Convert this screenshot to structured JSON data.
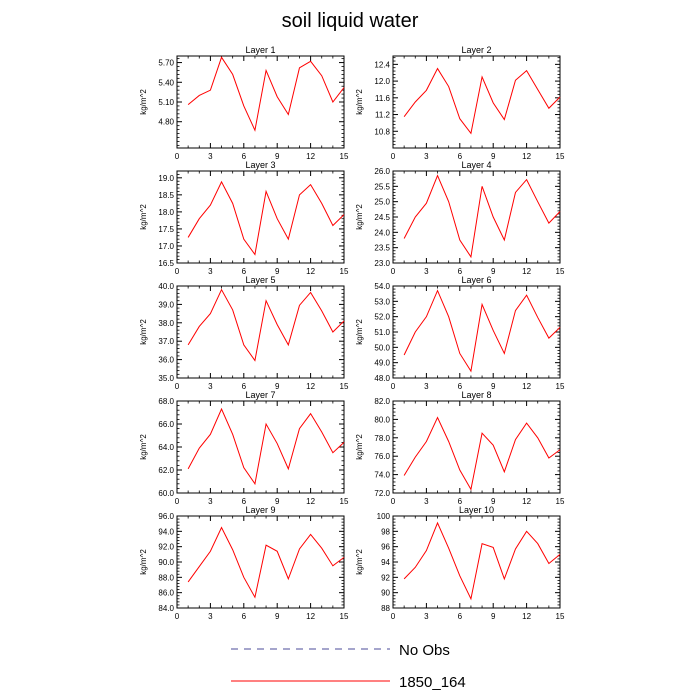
{
  "title": "soil liquid water",
  "legend": {
    "entries": [
      {
        "label": "No Obs",
        "color": "#4b4b9a",
        "style": "dashed"
      },
      {
        "label": "1850_164",
        "color": "#ff0000",
        "style": "solid"
      }
    ]
  },
  "colors": {
    "series": "#ff0000",
    "axes": "#000000"
  },
  "chart_data": [
    {
      "type": "line",
      "title": "Layer 1",
      "ylabel": "kg/m^2",
      "xlim": [
        0,
        15
      ],
      "ylim": [
        4.4,
        5.8
      ],
      "xticks": [
        0,
        3,
        6,
        9,
        12,
        15
      ],
      "xtick_labels": [
        "0",
        "3",
        "6",
        "9",
        "12",
        "15"
      ],
      "yticks": [
        4.8,
        5.1,
        5.4,
        5.7
      ],
      "ytick_labels": [
        "4.80",
        "5.10",
        "5.40",
        "5.70"
      ],
      "x": [
        1,
        2,
        3,
        4,
        5,
        6,
        7,
        8,
        9,
        10,
        11,
        12,
        13,
        14,
        15
      ],
      "series": [
        {
          "name": "1850_164",
          "values": [
            5.06,
            5.2,
            5.28,
            5.78,
            5.52,
            5.04,
            4.67,
            5.58,
            5.18,
            4.91,
            5.62,
            5.72,
            5.5,
            5.1,
            5.32
          ]
        }
      ]
    },
    {
      "type": "line",
      "title": "Layer 2",
      "ylabel": "kg/m^2",
      "xlim": [
        0,
        15
      ],
      "ylim": [
        10.4,
        12.6
      ],
      "xticks": [
        0,
        3,
        6,
        9,
        12,
        15
      ],
      "xtick_labels": [
        "0",
        "3",
        "6",
        "9",
        "12",
        "15"
      ],
      "yticks": [
        10.8,
        11.2,
        11.6,
        12.0,
        12.4
      ],
      "ytick_labels": [
        "10.8",
        "11.2",
        "11.6",
        "12.0",
        "12.4"
      ],
      "x": [
        1,
        2,
        3,
        4,
        5,
        6,
        7,
        8,
        9,
        10,
        11,
        12,
        13,
        14,
        15
      ],
      "series": [
        {
          "name": "1850_164",
          "values": [
            11.15,
            11.5,
            11.78,
            12.3,
            11.87,
            11.1,
            10.75,
            12.1,
            11.48,
            11.08,
            12.02,
            12.25,
            11.8,
            11.35,
            11.62
          ]
        }
      ]
    },
    {
      "type": "line",
      "title": "Layer 3",
      "ylabel": "kg/m^2",
      "xlim": [
        0,
        15
      ],
      "ylim": [
        16.5,
        19.2
      ],
      "xticks": [
        0,
        3,
        6,
        9,
        12,
        15
      ],
      "xtick_labels": [
        "0",
        "3",
        "6",
        "9",
        "12",
        "15"
      ],
      "yticks": [
        16.5,
        17.0,
        17.5,
        18.0,
        18.5,
        19.0
      ],
      "ytick_labels": [
        "16.5",
        "17.0",
        "17.5",
        "18.0",
        "18.5",
        "19.0"
      ],
      "x": [
        1,
        2,
        3,
        4,
        5,
        6,
        7,
        8,
        9,
        10,
        11,
        12,
        13,
        14,
        15
      ],
      "series": [
        {
          "name": "1850_164",
          "values": [
            17.25,
            17.8,
            18.2,
            18.88,
            18.25,
            17.2,
            16.75,
            18.6,
            17.8,
            17.2,
            18.5,
            18.8,
            18.25,
            17.6,
            17.92
          ]
        }
      ]
    },
    {
      "type": "line",
      "title": "Layer 4",
      "ylabel": "kg/m^2",
      "xlim": [
        0,
        15
      ],
      "ylim": [
        23.0,
        26.0
      ],
      "xticks": [
        0,
        3,
        6,
        9,
        12,
        15
      ],
      "xtick_labels": [
        "0",
        "3",
        "6",
        "9",
        "12",
        "15"
      ],
      "yticks": [
        23.0,
        23.5,
        24.0,
        24.5,
        25.0,
        25.5,
        26.0
      ],
      "ytick_labels": [
        "23.0",
        "23.5",
        "24.0",
        "24.5",
        "25.0",
        "25.5",
        "26.0"
      ],
      "x": [
        1,
        2,
        3,
        4,
        5,
        6,
        7,
        8,
        9,
        10,
        11,
        12,
        13,
        14,
        15
      ],
      "series": [
        {
          "name": "1850_164",
          "values": [
            23.8,
            24.5,
            24.95,
            25.85,
            25.0,
            23.75,
            23.2,
            25.5,
            24.5,
            23.75,
            25.3,
            25.72,
            25.0,
            24.3,
            24.68
          ]
        }
      ]
    },
    {
      "type": "line",
      "title": "Layer 5",
      "ylabel": "kg/m^2",
      "xlim": [
        0,
        15
      ],
      "ylim": [
        35.0,
        40.0
      ],
      "xticks": [
        0,
        3,
        6,
        9,
        12,
        15
      ],
      "xtick_labels": [
        "0",
        "3",
        "6",
        "9",
        "12",
        "15"
      ],
      "yticks": [
        35.0,
        36.0,
        37.0,
        38.0,
        39.0,
        40.0
      ],
      "ytick_labels": [
        "35.0",
        "36.0",
        "37.0",
        "38.0",
        "39.0",
        "40.0"
      ],
      "x": [
        1,
        2,
        3,
        4,
        5,
        6,
        7,
        8,
        9,
        10,
        11,
        12,
        13,
        14,
        15
      ],
      "series": [
        {
          "name": "1850_164",
          "values": [
            36.8,
            37.8,
            38.5,
            39.8,
            38.7,
            36.8,
            35.95,
            39.2,
            37.9,
            36.8,
            38.95,
            39.65,
            38.65,
            37.5,
            38.1
          ]
        }
      ]
    },
    {
      "type": "line",
      "title": "Layer 6",
      "ylabel": "kg/m^2",
      "xlim": [
        0,
        15
      ],
      "ylim": [
        48.0,
        54.0
      ],
      "xticks": [
        0,
        3,
        6,
        9,
        12,
        15
      ],
      "xtick_labels": [
        "0",
        "3",
        "6",
        "9",
        "12",
        "15"
      ],
      "yticks": [
        48.0,
        49.0,
        50.0,
        51.0,
        52.0,
        53.0,
        54.0
      ],
      "ytick_labels": [
        "48.0",
        "49.0",
        "50.0",
        "51.0",
        "52.0",
        "53.0",
        "54.0"
      ],
      "x": [
        1,
        2,
        3,
        4,
        5,
        6,
        7,
        8,
        9,
        10,
        11,
        12,
        13,
        14,
        15
      ],
      "series": [
        {
          "name": "1850_164",
          "values": [
            49.5,
            51.0,
            52.0,
            53.7,
            52.0,
            49.6,
            48.45,
            52.8,
            51.1,
            49.6,
            52.4,
            53.4,
            51.95,
            50.6,
            51.3
          ]
        }
      ]
    },
    {
      "type": "line",
      "title": "Layer 7",
      "ylabel": "kg/m^2",
      "xlim": [
        0,
        15
      ],
      "ylim": [
        60.0,
        68.0
      ],
      "xticks": [
        0,
        3,
        6,
        9,
        12,
        15
      ],
      "xtick_labels": [
        "0",
        "3",
        "6",
        "9",
        "12",
        "15"
      ],
      "yticks": [
        60.0,
        62.0,
        64.0,
        66.0,
        68.0
      ],
      "ytick_labels": [
        "60.0",
        "62.0",
        "64.0",
        "66.0",
        "68.0"
      ],
      "x": [
        1,
        2,
        3,
        4,
        5,
        6,
        7,
        8,
        9,
        10,
        11,
        12,
        13,
        14,
        15
      ],
      "series": [
        {
          "name": "1850_164",
          "values": [
            62.1,
            63.9,
            65.1,
            67.3,
            65.1,
            62.2,
            60.8,
            66.0,
            64.3,
            62.1,
            65.6,
            66.9,
            65.3,
            63.5,
            64.4
          ]
        }
      ]
    },
    {
      "type": "line",
      "title": "Layer 8",
      "ylabel": "kg/m^2",
      "xlim": [
        0,
        15
      ],
      "ylim": [
        72.0,
        82.0
      ],
      "xticks": [
        0,
        3,
        6,
        9,
        12,
        15
      ],
      "xtick_labels": [
        "0",
        "3",
        "6",
        "9",
        "12",
        "15"
      ],
      "yticks": [
        72.0,
        74.0,
        76.0,
        78.0,
        80.0,
        82.0
      ],
      "ytick_labels": [
        "72.0",
        "74.0",
        "76.0",
        "78.0",
        "80.0",
        "82.0"
      ],
      "x": [
        1,
        2,
        3,
        4,
        5,
        6,
        7,
        8,
        9,
        10,
        11,
        12,
        13,
        14,
        15
      ],
      "series": [
        {
          "name": "1850_164",
          "values": [
            73.9,
            75.9,
            77.6,
            80.2,
            77.6,
            74.5,
            72.4,
            78.5,
            77.2,
            74.3,
            77.8,
            79.6,
            78.0,
            75.8,
            76.7
          ]
        }
      ]
    },
    {
      "type": "line",
      "title": "Layer 9",
      "ylabel": "kg/m^2",
      "xlim": [
        0,
        15
      ],
      "ylim": [
        84.0,
        96.0
      ],
      "xticks": [
        0,
        3,
        6,
        9,
        12,
        15
      ],
      "xtick_labels": [
        "0",
        "3",
        "6",
        "9",
        "12",
        "15"
      ],
      "yticks": [
        84.0,
        86.0,
        88.0,
        90.0,
        92.0,
        94.0,
        96.0
      ],
      "ytick_labels": [
        "84.0",
        "86.0",
        "88.0",
        "90.0",
        "92.0",
        "94.0",
        "96.0"
      ],
      "x": [
        1,
        2,
        3,
        4,
        5,
        6,
        7,
        8,
        9,
        10,
        11,
        12,
        13,
        14,
        15
      ],
      "series": [
        {
          "name": "1850_164",
          "values": [
            87.4,
            89.4,
            91.4,
            94.5,
            91.6,
            88.0,
            85.4,
            92.2,
            91.4,
            87.8,
            91.7,
            93.6,
            91.8,
            89.5,
            90.6
          ]
        }
      ]
    },
    {
      "type": "line",
      "title": "Layer 10",
      "ylabel": "kg/m^2",
      "xlim": [
        0,
        15
      ],
      "ylim": [
        88,
        100
      ],
      "xticks": [
        0,
        3,
        6,
        9,
        12,
        15
      ],
      "xtick_labels": [
        "0",
        "3",
        "6",
        "9",
        "12",
        "15"
      ],
      "yticks": [
        88,
        90,
        92,
        94,
        96,
        98,
        100
      ],
      "ytick_labels": [
        "88",
        "90",
        "92",
        "94",
        "96",
        "98",
        "100"
      ],
      "x": [
        1,
        2,
        3,
        4,
        5,
        6,
        7,
        8,
        9,
        10,
        11,
        12,
        13,
        14,
        15
      ],
      "series": [
        {
          "name": "1850_164",
          "values": [
            91.8,
            93.3,
            95.5,
            99.1,
            95.8,
            92.2,
            89.2,
            96.4,
            95.9,
            91.8,
            95.7,
            98.0,
            96.4,
            93.8,
            95.0
          ]
        }
      ]
    }
  ]
}
